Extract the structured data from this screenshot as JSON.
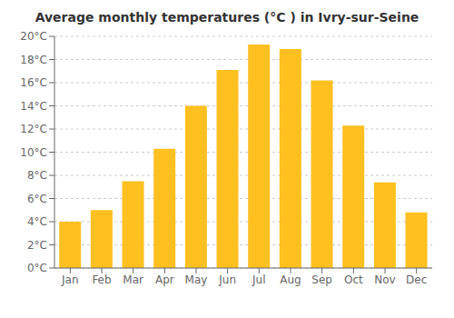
{
  "chart_data": {
    "type": "bar",
    "title": "Average monthly temperatures (°C ) in Ivry-sur-Seine",
    "categories": [
      "Jan",
      "Feb",
      "Mar",
      "Apr",
      "May",
      "Jun",
      "Jul",
      "Aug",
      "Sep",
      "Oct",
      "Nov",
      "Dec"
    ],
    "values": [
      4.0,
      5.0,
      7.5,
      10.3,
      14.0,
      17.1,
      19.3,
      18.9,
      16.2,
      12.3,
      7.4,
      4.8
    ],
    "color": "#FFC020",
    "ylim": [
      0,
      20
    ],
    "yticks": [
      {
        "value": 0,
        "label": "0°C"
      },
      {
        "value": 2,
        "label": "2°C"
      },
      {
        "value": 4,
        "label": "4°C"
      },
      {
        "value": 6,
        "label": "6°C"
      },
      {
        "value": 8,
        "label": "8°C"
      },
      {
        "value": 10,
        "label": "10°C"
      },
      {
        "value": 12,
        "label": "12°C"
      },
      {
        "value": 14,
        "label": "14°C"
      },
      {
        "value": 16,
        "label": "16°C"
      },
      {
        "value": 18,
        "label": "18°C"
      },
      {
        "value": 20,
        "label": "20°C"
      }
    ],
    "grid": true
  }
}
